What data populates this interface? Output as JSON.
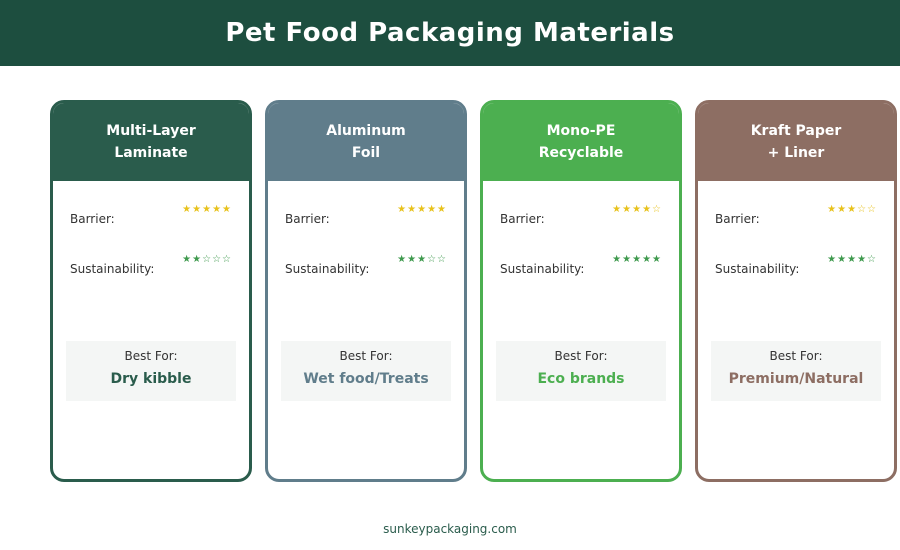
{
  "title": "Pet Food Packaging Materials",
  "footer": "sunkeypackaging.com",
  "labels": {
    "barrier": "Barrier:",
    "sustainability": "Sustainability:",
    "best_for": "Best For:"
  },
  "colors": {
    "header_bg": "#1d4e3f",
    "star_gold": "#e8c21c",
    "star_green": "#3f9a4e"
  },
  "materials": [
    {
      "name_line1": "Multi-Layer",
      "name_line2": "Laminate",
      "color": "#2a5c4c",
      "barrier_stars": "★★★★★",
      "barrier_rating": 5,
      "sustainability_stars": "★★☆☆☆",
      "sustainability_rating": 2,
      "best_for": "Dry kibble"
    },
    {
      "name_line1": "Aluminum",
      "name_line2": "Foil",
      "color": "#607d8b",
      "barrier_stars": "★★★★★",
      "barrier_rating": 5,
      "sustainability_stars": "★★★☆☆",
      "sustainability_rating": 3,
      "best_for": "Wet food/Treats"
    },
    {
      "name_line1": "Mono-PE",
      "name_line2": "Recyclable",
      "color": "#4caf50",
      "barrier_stars": "★★★★☆",
      "barrier_rating": 4,
      "sustainability_stars": "★★★★★",
      "sustainability_rating": 5,
      "best_for": "Eco brands"
    },
    {
      "name_line1": "Kraft Paper",
      "name_line2": "+ Liner",
      "color": "#8d6e63",
      "barrier_stars": "★★★☆☆",
      "barrier_rating": 3,
      "sustainability_stars": "★★★★☆",
      "sustainability_rating": 4,
      "best_for": "Premium/Natural"
    }
  ]
}
